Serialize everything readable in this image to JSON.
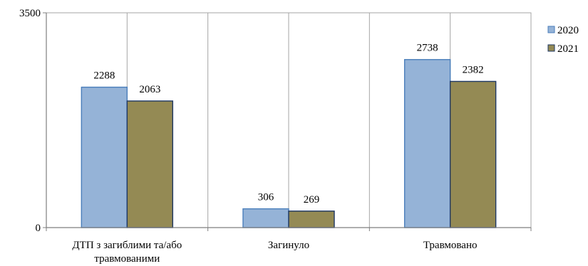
{
  "chart_data": {
    "type": "bar",
    "categories": [
      "ДТП з загиблими та/або травмованими",
      "Загинуло",
      "Травмовано"
    ],
    "category_lines": [
      [
        "ДТП з загиблими та/або",
        "травмованими"
      ],
      [
        "Загинуло"
      ],
      [
        "Травмовано"
      ]
    ],
    "series": [
      {
        "name": "2020",
        "values": [
          2288,
          306,
          2738
        ],
        "color": "#95B3D7"
      },
      {
        "name": "2021",
        "values": [
          2063,
          269,
          2382
        ],
        "color": "#948A54"
      }
    ],
    "ylim": [
      0,
      3500
    ],
    "yticks": [
      "0",
      "3500"
    ],
    "grid": true,
    "legend": "right",
    "title": "",
    "xlabel": "",
    "ylabel": ""
  }
}
